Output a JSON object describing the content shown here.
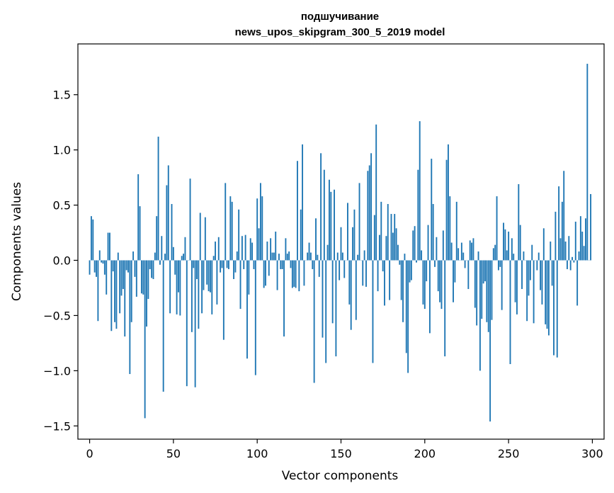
{
  "chart_data": {
    "type": "bar",
    "title": "подшучивание",
    "subtitle": "news_upos_skipgram_300_5_2019 model",
    "xlabel": "Vector components",
    "ylabel": "Components values",
    "xlim": [
      -7,
      307
    ],
    "ylim": [
      -1.62,
      1.96
    ],
    "xticks": [
      0,
      50,
      100,
      150,
      200,
      250,
      300
    ],
    "xtick_labels": [
      "0",
      "50",
      "100",
      "150",
      "200",
      "250",
      "300"
    ],
    "yticks": [
      -1.5,
      -1.0,
      -0.5,
      0.0,
      0.5,
      1.0,
      1.5
    ],
    "ytick_labels": [
      "−1.5",
      "−1.0",
      "−0.5",
      "0.0",
      "0.5",
      "1.0",
      "1.5"
    ],
    "bar_color": "#1f77b4",
    "grid": false,
    "values": [
      -0.13,
      0.4,
      0.37,
      -0.11,
      -0.15,
      -0.55,
      0.09,
      -0.02,
      -0.03,
      -0.13,
      -0.31,
      0.25,
      0.25,
      -0.64,
      -0.1,
      -0.56,
      -0.62,
      0.07,
      -0.48,
      -0.32,
      -0.26,
      -0.69,
      -0.09,
      -0.11,
      -1.03,
      -0.56,
      0.08,
      -0.15,
      -0.33,
      0.78,
      0.49,
      -0.3,
      -0.31,
      -1.43,
      -0.6,
      -0.35,
      -0.08,
      -0.16,
      -0.17,
      0.07,
      0.4,
      1.12,
      -0.04,
      0.22,
      -1.19,
      0.06,
      0.68,
      0.86,
      -0.48,
      0.51,
      0.12,
      -0.13,
      -0.49,
      -0.29,
      -0.5,
      0.04,
      0.06,
      0.21,
      -1.14,
      0.0,
      0.74,
      -0.65,
      -0.07,
      -1.15,
      -0.17,
      -0.62,
      0.43,
      -0.48,
      -0.27,
      0.39,
      -0.22,
      -0.28,
      -0.29,
      -0.49,
      0.04,
      0.17,
      -0.4,
      0.21,
      -0.11,
      -0.07,
      -0.72,
      0.7,
      -0.07,
      -0.08,
      0.58,
      0.53,
      -0.17,
      -0.11,
      0.08,
      0.46,
      -0.44,
      0.22,
      -0.08,
      0.23,
      -0.89,
      -0.31,
      0.2,
      0.16,
      -0.08,
      -1.04,
      0.56,
      0.29,
      0.7,
      0.58,
      -0.25,
      -0.23,
      0.17,
      -0.14,
      0.2,
      0.07,
      0.07,
      0.26,
      -0.27,
      0.06,
      -0.08,
      -0.08,
      -0.69,
      0.2,
      0.06,
      0.08,
      -0.07,
      -0.25,
      -0.24,
      -0.25,
      0.9,
      -0.28,
      0.46,
      1.05,
      -0.23,
      0.0,
      0.07,
      0.16,
      0.07,
      -0.08,
      -1.11,
      0.38,
      0.05,
      -0.15,
      0.97,
      -0.7,
      0.82,
      -0.93,
      0.14,
      0.73,
      0.62,
      -0.57,
      0.64,
      -0.87,
      0.07,
      -0.18,
      0.3,
      0.07,
      -0.16,
      0.0,
      0.52,
      -0.4,
      -0.63,
      0.3,
      0.46,
      -0.54,
      0.05,
      0.7,
      0.0,
      -0.23,
      0.09,
      -0.24,
      0.81,
      0.86,
      0.97,
      -0.93,
      0.41,
      1.23,
      -0.28,
      0.23,
      0.53,
      -0.1,
      -0.41,
      0.22,
      0.51,
      -0.36,
      0.42,
      0.25,
      0.42,
      0.29,
      0.14,
      -0.04,
      -0.36,
      -0.56,
      0.06,
      -0.84,
      -1.02,
      -0.2,
      -0.18,
      0.27,
      0.31,
      -0.02,
      0.82,
      1.26,
      0.09,
      -0.4,
      -0.44,
      -0.19,
      0.32,
      -0.66,
      0.92,
      0.51,
      -0.06,
      0.21,
      -0.28,
      -0.38,
      -0.44,
      0.27,
      -0.87,
      0.91,
      1.05,
      0.58,
      0.16,
      -0.38,
      -0.2,
      0.53,
      0.11,
      0.0,
      0.16,
      0.07,
      -0.07,
      0.0,
      -0.26,
      0.18,
      0.16,
      0.2,
      -0.43,
      -0.59,
      0.08,
      -1.0,
      -0.53,
      -0.21,
      -0.19,
      -0.56,
      -0.65,
      -1.46,
      -0.54,
      0.11,
      0.14,
      0.58,
      -0.09,
      -0.06,
      -0.45,
      0.34,
      0.28,
      0.09,
      0.26,
      -0.94,
      0.2,
      0.06,
      -0.38,
      -0.49,
      0.69,
      0.32,
      -0.26,
      0.08,
      0.0,
      -0.55,
      -0.32,
      -0.18,
      0.14,
      -0.57,
      0.0,
      -0.09,
      0.07,
      -0.27,
      -0.4,
      0.29,
      -0.58,
      -0.62,
      -0.68,
      0.17,
      -0.23,
      -0.86,
      0.44,
      -0.88,
      0.67,
      0.2,
      0.53,
      0.81,
      0.17,
      -0.08,
      0.22,
      -0.09,
      0.03,
      -0.02,
      0.35,
      -0.41,
      0.08,
      0.4,
      0.26,
      0.13,
      0.38,
      1.78,
      0.0,
      0.6
    ]
  }
}
